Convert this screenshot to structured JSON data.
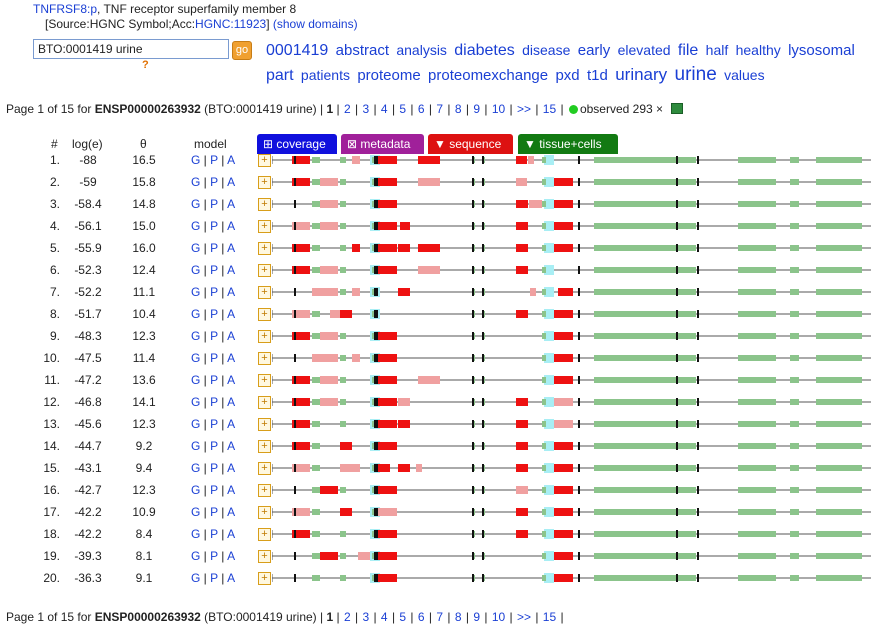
{
  "header": {
    "gene_symbol": "TNFRSF8:p",
    "gene_desc": ", TNF receptor superfamily member 8",
    "source_prefix": "[Source:HGNC Symbol;Acc:",
    "source_link": "HGNC:11923",
    "source_suffix": "]",
    "show_domains": "(show domains)"
  },
  "search": {
    "value": "BTO:0001419 urine",
    "go_label": "go",
    "help": "?"
  },
  "tag_cloud": [
    {
      "text": "0001419",
      "size": 16
    },
    {
      "text": "abstract",
      "size": 15
    },
    {
      "text": "analysis",
      "size": 14
    },
    {
      "text": "diabetes",
      "size": 16
    },
    {
      "text": "disease",
      "size": 14
    },
    {
      "text": "early",
      "size": 15
    },
    {
      "text": "elevated",
      "size": 14
    },
    {
      "text": "file",
      "size": 16
    },
    {
      "text": "half",
      "size": 14
    },
    {
      "text": "healthy",
      "size": 14
    },
    {
      "text": "lysosomal",
      "size": 15
    },
    {
      "text": "part",
      "size": 16
    },
    {
      "text": "patients",
      "size": 14
    },
    {
      "text": "proteome",
      "size": 15
    },
    {
      "text": "proteomexchange",
      "size": 15
    },
    {
      "text": "pxd",
      "size": 15
    },
    {
      "text": "t1d",
      "size": 15
    },
    {
      "text": "urinary",
      "size": 17
    },
    {
      "text": "urine",
      "size": 19
    },
    {
      "text": "values",
      "size": 14
    }
  ],
  "pager_top": {
    "prefix": "Page 1 of 15 for ",
    "protein": "ENSP00000263932",
    "query": " (BTO:0001419 urine) | ",
    "current": "1",
    "pages": [
      "2",
      "3",
      "4",
      "5",
      "6",
      "7",
      "8",
      "9",
      "10",
      ">>",
      "15"
    ],
    "observed": "observed 293 ×"
  },
  "pager_bottom": {
    "prefix": "Page 1 of 15 for ",
    "protein": "ENSP00000263932",
    "query": " (BTO:0001419 urine) | ",
    "current": "1",
    "pages": [
      "2",
      "3",
      "4",
      "5",
      "6",
      "7",
      "8",
      "9",
      "10",
      ">>",
      "15"
    ]
  },
  "columns": {
    "num": "#",
    "loge": "log(e)",
    "theta": "θ",
    "model": "model"
  },
  "tabs": [
    {
      "label": "⊞ coverage",
      "color": "#1010dd"
    },
    {
      "label": "⊠ metadata",
      "color": "#a0209a"
    },
    {
      "label": "▼ sequence",
      "color": "#dd1111"
    },
    {
      "label": "▼ tissue+cells",
      "color": "#127a12"
    }
  ],
  "model_links": [
    "G",
    "P",
    "A"
  ],
  "rows": [
    {
      "n": "1.",
      "loge": "-88",
      "theta": "16.5",
      "reds": [
        [
          20,
          38,
          "d"
        ],
        [
          80,
          88,
          "l"
        ],
        [
          106,
          125,
          "d"
        ],
        [
          146,
          168,
          "d"
        ],
        [
          244,
          255,
          "d"
        ],
        [
          256,
          262,
          "l"
        ]
      ]
    },
    {
      "n": "2.",
      "loge": "-59",
      "theta": "15.8",
      "reds": [
        [
          20,
          38,
          "d"
        ],
        [
          48,
          66,
          "l"
        ],
        [
          106,
          125,
          "d"
        ],
        [
          146,
          168,
          "l"
        ],
        [
          244,
          255,
          "l"
        ],
        [
          282,
          301,
          "d"
        ]
      ]
    },
    {
      "n": "3.",
      "loge": "-58.4",
      "theta": "14.8",
      "reds": [
        [
          48,
          66,
          "l"
        ],
        [
          106,
          125,
          "d"
        ],
        [
          244,
          256,
          "d"
        ],
        [
          257,
          270,
          "l"
        ],
        [
          282,
          301,
          "d"
        ]
      ]
    },
    {
      "n": "4.",
      "loge": "-56.1",
      "theta": "15.0",
      "reds": [
        [
          20,
          38,
          "l"
        ],
        [
          48,
          66,
          "l"
        ],
        [
          106,
          125,
          "d"
        ],
        [
          128,
          138,
          "d"
        ],
        [
          244,
          256,
          "d"
        ],
        [
          282,
          301,
          "d"
        ]
      ]
    },
    {
      "n": "5.",
      "loge": "-55.9",
      "theta": "16.0",
      "reds": [
        [
          20,
          38,
          "d"
        ],
        [
          80,
          88,
          "d"
        ],
        [
          106,
          125,
          "d"
        ],
        [
          126,
          138,
          "d"
        ],
        [
          146,
          168,
          "d"
        ],
        [
          244,
          256,
          "d"
        ],
        [
          282,
          301,
          "d"
        ]
      ]
    },
    {
      "n": "6.",
      "loge": "-52.3",
      "theta": "12.4",
      "reds": [
        [
          20,
          38,
          "d"
        ],
        [
          48,
          66,
          "l"
        ],
        [
          106,
          125,
          "d"
        ],
        [
          146,
          168,
          "l"
        ],
        [
          244,
          256,
          "d"
        ]
      ]
    },
    {
      "n": "7.",
      "loge": "-52.2",
      "theta": "11.1",
      "reds": [
        [
          40,
          66,
          "l"
        ],
        [
          80,
          88,
          "l"
        ],
        [
          126,
          138,
          "d"
        ],
        [
          258,
          264,
          "l"
        ],
        [
          286,
          301,
          "d"
        ]
      ]
    },
    {
      "n": "8.",
      "loge": "-51.7",
      "theta": "10.4",
      "reds": [
        [
          20,
          38,
          "l"
        ],
        [
          58,
          68,
          "l"
        ],
        [
          68,
          80,
          "d"
        ],
        [
          244,
          256,
          "d"
        ],
        [
          282,
          301,
          "d"
        ]
      ]
    },
    {
      "n": "9.",
      "loge": "-48.3",
      "theta": "12.3",
      "reds": [
        [
          20,
          38,
          "d"
        ],
        [
          48,
          66,
          "l"
        ],
        [
          106,
          125,
          "d"
        ],
        [
          282,
          301,
          "d"
        ]
      ]
    },
    {
      "n": "10.",
      "loge": "-47.5",
      "theta": "11.4",
      "reds": [
        [
          40,
          66,
          "l"
        ],
        [
          80,
          88,
          "l"
        ],
        [
          106,
          125,
          "d"
        ],
        [
          282,
          301,
          "d"
        ]
      ]
    },
    {
      "n": "11.",
      "loge": "-47.2",
      "theta": "13.6",
      "reds": [
        [
          20,
          38,
          "d"
        ],
        [
          48,
          66,
          "l"
        ],
        [
          106,
          125,
          "d"
        ],
        [
          146,
          168,
          "l"
        ],
        [
          282,
          301,
          "d"
        ]
      ]
    },
    {
      "n": "12.",
      "loge": "-46.8",
      "theta": "14.1",
      "reds": [
        [
          20,
          38,
          "d"
        ],
        [
          48,
          66,
          "l"
        ],
        [
          106,
          125,
          "d"
        ],
        [
          126,
          138,
          "l"
        ],
        [
          244,
          256,
          "d"
        ],
        [
          282,
          301,
          "l"
        ]
      ]
    },
    {
      "n": "13.",
      "loge": "-45.6",
      "theta": "12.3",
      "reds": [
        [
          20,
          38,
          "d"
        ],
        [
          106,
          125,
          "d"
        ],
        [
          126,
          138,
          "d"
        ],
        [
          244,
          256,
          "d"
        ],
        [
          282,
          301,
          "l"
        ]
      ]
    },
    {
      "n": "14.",
      "loge": "-44.7",
      "theta": "9.2",
      "reds": [
        [
          20,
          38,
          "d"
        ],
        [
          68,
          80,
          "d"
        ],
        [
          106,
          125,
          "d"
        ],
        [
          244,
          256,
          "d"
        ],
        [
          282,
          301,
          "d"
        ]
      ]
    },
    {
      "n": "15.",
      "loge": "-43.1",
      "theta": "9.4",
      "reds": [
        [
          20,
          38,
          "l"
        ],
        [
          68,
          88,
          "l"
        ],
        [
          106,
          118,
          "d"
        ],
        [
          126,
          138,
          "d"
        ],
        [
          144,
          150,
          "l"
        ],
        [
          244,
          256,
          "d"
        ],
        [
          282,
          301,
          "d"
        ]
      ]
    },
    {
      "n": "16.",
      "loge": "-42.7",
      "theta": "12.3",
      "reds": [
        [
          48,
          66,
          "d"
        ],
        [
          106,
          125,
          "d"
        ],
        [
          244,
          256,
          "l"
        ],
        [
          282,
          301,
          "d"
        ]
      ]
    },
    {
      "n": "17.",
      "loge": "-42.2",
      "theta": "10.9",
      "reds": [
        [
          20,
          38,
          "l"
        ],
        [
          68,
          80,
          "d"
        ],
        [
          106,
          125,
          "l"
        ],
        [
          244,
          256,
          "d"
        ],
        [
          282,
          301,
          "d"
        ]
      ]
    },
    {
      "n": "18.",
      "loge": "-42.2",
      "theta": "8.4",
      "reds": [
        [
          20,
          38,
          "d"
        ],
        [
          106,
          125,
          "d"
        ],
        [
          244,
          256,
          "d"
        ],
        [
          282,
          301,
          "d"
        ]
      ]
    },
    {
      "n": "19.",
      "loge": "-39.3",
      "theta": "8.1",
      "reds": [
        [
          48,
          66,
          "d"
        ],
        [
          86,
          98,
          "l"
        ],
        [
          106,
          125,
          "d"
        ],
        [
          282,
          301,
          "d"
        ]
      ]
    },
    {
      "n": "20.",
      "loge": "-36.3",
      "theta": "9.1",
      "reds": [
        [
          106,
          125,
          "d"
        ],
        [
          282,
          301,
          "d"
        ]
      ]
    }
  ],
  "track_colors": {
    "red": "#ee1111",
    "red_light": "#f0a0a0",
    "green": "#8bc48b",
    "green_dark": "#4e9f4e",
    "cyan": "#a8eef4",
    "line": "#555555",
    "tick": "#111111"
  }
}
